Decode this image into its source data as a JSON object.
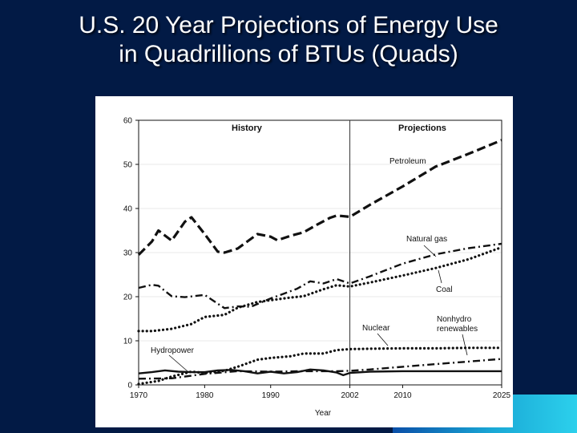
{
  "slide": {
    "title_line1": "U.S. 20 Year Projections of Energy Use",
    "title_line2": "in Quadrillions of BTUs (Quads)"
  },
  "colors": {
    "background": "#021a45",
    "title_text": "#ffffff",
    "chart_bg": "#ffffff",
    "series": "#111111"
  },
  "chart_data": {
    "type": "line",
    "title": "",
    "xlabel": "Year",
    "ylabel": "",
    "xlim": [
      1970,
      2025
    ],
    "ylim": [
      0,
      60
    ],
    "x_ticks": [
      1970,
      1980,
      1990,
      2002,
      2010,
      2025
    ],
    "y_ticks": [
      0,
      10,
      20,
      30,
      40,
      50,
      60
    ],
    "divider_year": 2002,
    "region_labels": {
      "history": "History",
      "projections": "Projections"
    },
    "series": [
      {
        "name": "Petroleum",
        "style": "long-dash",
        "x": [
          1970,
          1972,
          1973,
          1975,
          1977,
          1978,
          1980,
          1982,
          1983,
          1985,
          1988,
          1990,
          1991,
          1993,
          1995,
          1997,
          1999,
          2000,
          2002,
          2005,
          2010,
          2015,
          2020,
          2025
        ],
        "values": [
          29.5,
          32.5,
          35,
          32.7,
          37,
          38,
          34.2,
          30.2,
          30,
          30.9,
          34.2,
          33.6,
          32.8,
          33.8,
          34.6,
          36.3,
          37.9,
          38.4,
          38.1,
          40.8,
          45,
          49.5,
          52.4,
          55.5
        ]
      },
      {
        "name": "Natural gas",
        "style": "dash-dot",
        "x": [
          1970,
          1972,
          1973,
          1975,
          1977,
          1980,
          1983,
          1985,
          1987,
          1990,
          1992,
          1994,
          1996,
          1998,
          2000,
          2002,
          2005,
          2010,
          2015,
          2020,
          2025
        ],
        "values": [
          22,
          22.7,
          22.5,
          20.1,
          19.9,
          20.4,
          17.4,
          17.8,
          17.7,
          19.6,
          20.7,
          21.8,
          23.5,
          23,
          24,
          23,
          24.6,
          27.5,
          29.6,
          31,
          32
        ]
      },
      {
        "name": "Coal",
        "style": "dotted",
        "x": [
          1970,
          1972,
          1975,
          1978,
          1980,
          1983,
          1985,
          1988,
          1990,
          1993,
          1995,
          1998,
          2000,
          2002,
          2005,
          2010,
          2015,
          2020,
          2025
        ],
        "values": [
          12.2,
          12.2,
          12.7,
          13.8,
          15.4,
          15.9,
          17.5,
          18.8,
          19.2,
          19.8,
          20.1,
          21.7,
          22.6,
          22.3,
          23.2,
          24.8,
          26.5,
          28.5,
          31.2
        ]
      },
      {
        "name": "Nuclear",
        "style": "dotted",
        "x": [
          1970,
          1973,
          1975,
          1978,
          1980,
          1983,
          1985,
          1988,
          1990,
          1993,
          1995,
          1998,
          2000,
          2002,
          2005,
          2010,
          2015,
          2020,
          2025
        ],
        "values": [
          0.2,
          0.9,
          1.9,
          3,
          2.7,
          3.2,
          4.1,
          5.7,
          6.1,
          6.5,
          7.1,
          7.1,
          7.9,
          8.1,
          8.2,
          8.3,
          8.3,
          8.4,
          8.4
        ]
      },
      {
        "name": "Nonhydro renewables",
        "style": "dash-dot",
        "x": [
          1970,
          1975,
          1980,
          1985,
          1990,
          1995,
          2000,
          2002,
          2005,
          2010,
          2015,
          2020,
          2025
        ],
        "values": [
          1.4,
          1.5,
          2.5,
          3.1,
          3,
          3.1,
          3.1,
          3.2,
          3.5,
          4.1,
          4.7,
          5.3,
          5.9
        ]
      },
      {
        "name": "Hydropower",
        "style": "solid",
        "x": [
          1970,
          1972,
          1974,
          1976,
          1978,
          1980,
          1982,
          1984,
          1986,
          1988,
          1990,
          1992,
          1994,
          1996,
          1998,
          2000,
          2001,
          2002,
          2005,
          2010,
          2015,
          2020,
          2025
        ],
        "values": [
          2.6,
          2.9,
          3.3,
          3,
          2.9,
          2.9,
          3.3,
          3.4,
          3.1,
          2.6,
          3,
          2.6,
          2.9,
          3.5,
          3.3,
          2.8,
          2.2,
          2.7,
          3,
          3.1,
          3.1,
          3.1,
          3.1
        ]
      }
    ],
    "labels": {
      "petroleum": "Petroleum",
      "natural_gas": "Natural gas",
      "coal": "Coal",
      "nuclear": "Nuclear",
      "nonhydro_line1": "Nonhydro",
      "nonhydro_line2": "renewables",
      "hydropower": "Hydropower"
    }
  }
}
